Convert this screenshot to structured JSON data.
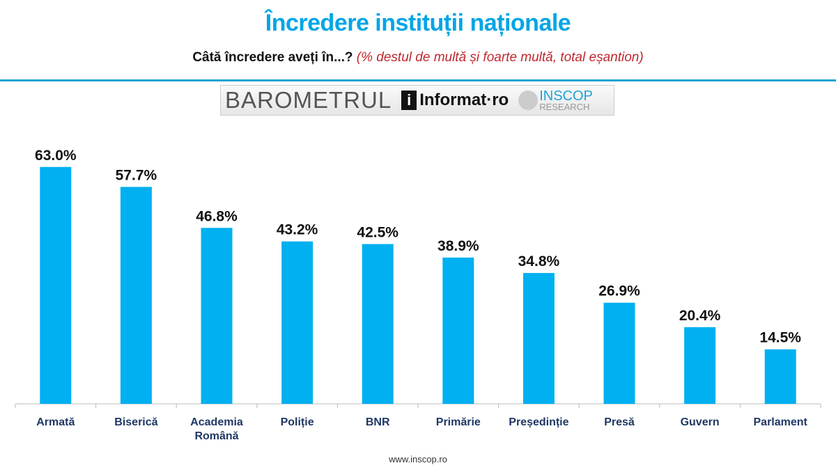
{
  "header": {
    "title": "Încredere instituții naționale",
    "question": "Câtă încredere aveți în...?",
    "note": "(%  destul de multă și foarte multă, total eșantion)"
  },
  "logo": {
    "barometrul": "BAROMETRUL",
    "informat": "Informat·ro",
    "inscop": "INSCOP",
    "research": "RESEARCH"
  },
  "footer": "www.inscop.ro",
  "chart_data": {
    "type": "bar",
    "title": "Încredere instituții naționale",
    "categories": [
      "Armată",
      "Biserică",
      "Academia Română",
      "Poliție",
      "BNR",
      "Primărie",
      "Președinție",
      "Presă",
      "Guvern",
      "Parlament"
    ],
    "values": [
      63.0,
      57.7,
      46.8,
      43.2,
      42.5,
      38.9,
      34.8,
      26.9,
      20.4,
      14.5
    ],
    "labels": [
      "63.0%",
      "57.7%",
      "46.8%",
      "43.2%",
      "42.5%",
      "38.9%",
      "34.8%",
      "26.9%",
      "20.4%",
      "14.5%"
    ],
    "ylim": [
      0,
      70
    ],
    "grid": false,
    "color": "#00b0f0"
  }
}
